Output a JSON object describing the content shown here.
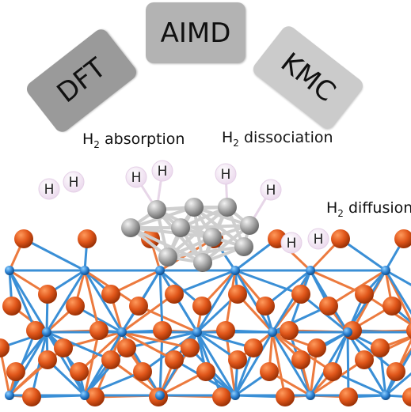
{
  "methods": {
    "left": "DFT",
    "center": "AIMD",
    "right": "KMC"
  },
  "processes": {
    "absorption": {
      "species": "H",
      "subscript": "2",
      "text": "absorption"
    },
    "dissociation": {
      "species": "H",
      "subscript": "2",
      "text": "dissociation"
    },
    "diffusion": {
      "species": "H",
      "subscript": "2",
      "text": "diffusion"
    }
  },
  "atoms": {
    "hydrogen_symbol": "H"
  },
  "colors": {
    "method_box_dark": "#9a9a9a",
    "method_box_center": "#b3b3b3",
    "method_box_light": "#cbcbcb",
    "oxygen_atom": "#d94f12",
    "metal_bond": "#3a8fd6",
    "metal_atom": "#1f6fbf",
    "cluster_atom": "#a9a9a9",
    "hydrogen_atom": "#f1e4f2"
  }
}
